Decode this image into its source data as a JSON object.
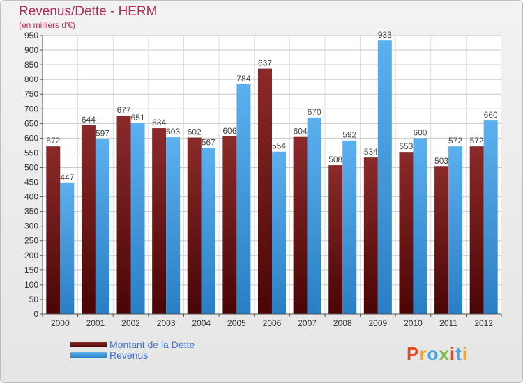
{
  "chart_data": {
    "type": "bar",
    "title": "Revenus/Dette - HERM",
    "subtitle": "(en milliers d'€)",
    "categories": [
      "2000",
      "2001",
      "2002",
      "2003",
      "2004",
      "2005",
      "2006",
      "2007",
      "2008",
      "2009",
      "2010",
      "2011",
      "2012"
    ],
    "series": [
      {
        "name": "Montant de la Dette",
        "color": "#7a1a1a",
        "values": [
          572,
          644,
          677,
          634,
          602,
          606,
          837,
          604,
          508,
          534,
          553,
          503,
          572
        ]
      },
      {
        "name": "Revenus",
        "color": "#3f9ae0",
        "values": [
          447,
          597,
          651,
          603,
          567,
          784,
          554,
          670,
          592,
          933,
          600,
          572,
          660
        ]
      }
    ],
    "ylim": [
      0,
      950
    ],
    "ytick_step": 50,
    "grid": true
  },
  "logo": {
    "text": "Proxiti",
    "colors": [
      "#e8481c",
      "#f5a623",
      "#4aa3df",
      "#7bc043",
      "#e8481c",
      "#4aa3df",
      "#f5a623"
    ]
  }
}
